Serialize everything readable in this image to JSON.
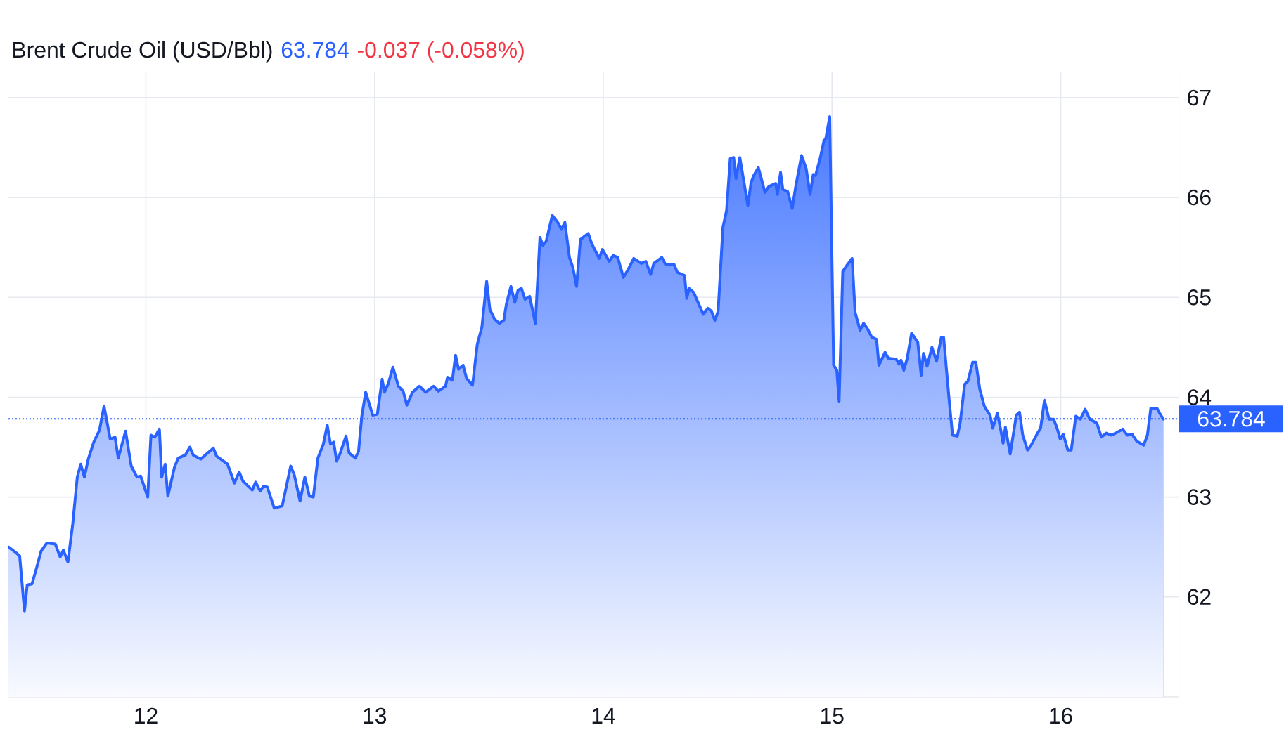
{
  "chart_data": {
    "type": "area",
    "title": "Brent Crude Oil (USD/Bbl)",
    "annotations": [
      "63.784",
      "-0.037 (-0.058%)"
    ],
    "color": "#2962ff",
    "x": [
      11.399,
      11.434,
      11.448,
      11.469,
      11.481,
      11.502,
      11.522,
      11.542,
      11.567,
      11.604,
      11.625,
      11.639,
      11.659,
      11.68,
      11.7,
      11.715,
      11.731,
      11.748,
      11.772,
      11.797,
      11.817,
      11.844,
      11.865,
      11.879,
      11.911,
      11.936,
      11.961,
      11.977,
      12.008,
      12.022,
      12.039,
      12.059,
      12.069,
      12.084,
      12.096,
      12.125,
      12.141,
      12.172,
      12.192,
      12.207,
      12.24,
      12.264,
      12.295,
      12.309,
      12.357,
      12.387,
      12.408,
      12.424,
      12.465,
      12.48,
      12.5,
      12.514,
      12.531,
      12.561,
      12.596,
      12.633,
      12.649,
      12.674,
      12.695,
      12.715,
      12.732,
      12.752,
      12.776,
      12.793,
      12.807,
      12.821,
      12.834,
      12.848,
      12.875,
      12.889,
      12.916,
      12.93,
      12.944,
      12.961,
      12.992,
      13.012,
      13.033,
      13.043,
      13.059,
      13.08,
      13.104,
      13.125,
      13.141,
      13.166,
      13.196,
      13.223,
      13.258,
      13.279,
      13.31,
      13.319,
      13.34,
      13.354,
      13.367,
      13.387,
      13.402,
      13.428,
      13.449,
      13.469,
      13.49,
      13.504,
      13.525,
      13.545,
      13.565,
      13.576,
      13.596,
      13.613,
      13.627,
      13.642,
      13.658,
      13.678,
      13.703,
      13.723,
      13.736,
      13.75,
      13.777,
      13.801,
      13.817,
      13.832,
      13.852,
      13.867,
      13.883,
      13.9,
      13.934,
      13.949,
      13.982,
      13.996,
      14.026,
      14.043,
      14.063,
      14.088,
      14.109,
      14.133,
      14.166,
      14.186,
      14.207,
      14.221,
      14.256,
      14.272,
      14.309,
      14.324,
      14.355,
      14.365,
      14.375,
      14.395,
      14.437,
      14.457,
      14.473,
      14.488,
      14.502,
      14.523,
      14.539,
      14.555,
      14.57,
      14.58,
      14.597,
      14.632,
      14.646,
      14.658,
      14.678,
      14.707,
      14.724,
      14.754,
      14.761,
      14.775,
      14.785,
      14.806,
      14.826,
      14.842,
      14.867,
      14.887,
      14.904,
      14.918,
      14.928,
      14.949,
      14.965,
      14.973,
      14.99,
      15.007,
      15.021,
      15.031,
      15.047,
      15.068,
      15.088,
      15.101,
      15.123,
      15.138,
      15.154,
      15.174,
      15.195,
      15.205,
      15.232,
      15.246,
      15.281,
      15.293,
      15.302,
      15.314,
      15.328,
      15.348,
      15.375,
      15.39,
      15.4,
      15.416,
      15.437,
      15.457,
      15.478,
      15.488,
      15.513,
      15.527,
      15.548,
      15.56,
      15.58,
      15.594,
      15.615,
      15.629,
      15.646,
      15.666,
      15.691,
      15.703,
      15.723,
      15.738,
      15.748,
      15.758,
      15.779,
      15.806,
      15.82,
      15.834,
      15.855,
      15.871,
      15.896,
      15.912,
      15.929,
      15.949,
      15.969,
      15.984,
      15.998,
      16.011,
      16.031,
      16.046,
      16.066,
      16.086,
      16.107,
      16.127,
      16.158,
      16.178,
      16.199,
      16.22,
      16.24,
      16.271,
      16.291,
      16.312,
      16.332,
      16.363,
      16.379,
      16.394,
      16.421,
      16.435,
      16.449
    ],
    "values": [
      62.5,
      62.44,
      62.41,
      61.86,
      62.12,
      62.13,
      62.29,
      62.46,
      62.54,
      62.53,
      62.4,
      62.47,
      62.35,
      62.73,
      63.2,
      63.33,
      63.2,
      63.38,
      63.55,
      63.67,
      63.91,
      63.58,
      63.6,
      63.39,
      63.66,
      63.31,
      63.2,
      63.21,
      63.0,
      63.62,
      63.6,
      63.68,
      63.2,
      63.33,
      63.01,
      63.3,
      63.39,
      63.42,
      63.5,
      63.42,
      63.38,
      63.43,
      63.49,
      63.41,
      63.33,
      63.14,
      63.25,
      63.16,
      63.07,
      63.15,
      63.06,
      63.11,
      63.1,
      62.89,
      62.91,
      63.31,
      63.22,
      62.96,
      63.2,
      63.01,
      63.0,
      63.39,
      63.53,
      63.72,
      63.53,
      63.55,
      63.36,
      63.43,
      63.61,
      63.44,
      63.39,
      63.46,
      63.81,
      64.05,
      63.82,
      63.83,
      64.18,
      64.05,
      64.13,
      64.3,
      64.11,
      64.06,
      63.92,
      64.05,
      64.11,
      64.05,
      64.11,
      64.06,
      64.11,
      64.2,
      64.17,
      64.42,
      64.28,
      64.32,
      64.19,
      64.12,
      64.53,
      64.7,
      65.16,
      64.88,
      64.78,
      64.74,
      64.77,
      64.93,
      65.11,
      64.95,
      65.07,
      65.09,
      64.98,
      65.01,
      64.74,
      65.6,
      65.52,
      65.56,
      65.82,
      65.75,
      65.68,
      65.75,
      65.4,
      65.3,
      65.11,
      65.58,
      65.64,
      65.54,
      65.39,
      65.48,
      65.36,
      65.42,
      65.4,
      65.2,
      65.28,
      65.39,
      65.34,
      65.36,
      65.23,
      65.34,
      65.4,
      65.33,
      65.33,
      65.25,
      65.22,
      64.99,
      65.09,
      65.05,
      64.83,
      64.89,
      64.86,
      64.77,
      64.86,
      65.7,
      65.87,
      66.39,
      66.4,
      66.19,
      66.4,
      65.92,
      66.15,
      66.22,
      66.3,
      66.05,
      66.11,
      66.14,
      66.03,
      66.25,
      66.08,
      66.06,
      65.89,
      66.12,
      66.42,
      66.29,
      66.03,
      66.23,
      66.22,
      66.4,
      66.57,
      66.59,
      66.81,
      64.32,
      64.27,
      63.96,
      65.26,
      65.33,
      65.39,
      64.85,
      64.67,
      64.74,
      64.69,
      64.6,
      64.58,
      64.32,
      64.45,
      64.39,
      64.38,
      64.33,
      64.37,
      64.27,
      64.38,
      64.64,
      64.55,
      64.22,
      64.44,
      64.31,
      64.5,
      64.36,
      64.6,
      64.6,
      63.95,
      63.62,
      63.61,
      63.74,
      64.13,
      64.16,
      64.35,
      64.35,
      64.08,
      63.91,
      63.82,
      63.69,
      63.84,
      63.67,
      63.54,
      63.7,
      63.43,
      63.82,
      63.85,
      63.62,
      63.47,
      63.52,
      63.63,
      63.69,
      63.97,
      63.78,
      63.78,
      63.69,
      63.58,
      63.63,
      63.47,
      63.47,
      63.81,
      63.78,
      63.88,
      63.78,
      63.74,
      63.6,
      63.64,
      63.62,
      63.64,
      63.68,
      63.62,
      63.63,
      63.56,
      63.52,
      63.62,
      63.89,
      63.89,
      63.83,
      63.78
    ],
    "xlim": [
      11.399,
      16.517
    ],
    "ylim": [
      61,
      67.25
    ],
    "xticks": [
      12,
      13,
      14,
      15,
      16
    ],
    "yticks": [
      62,
      63,
      64,
      65,
      66,
      67
    ],
    "grid": true,
    "ref_lines": [
      {
        "axis": "y",
        "value": 63.784,
        "label": "63.784",
        "color": "#2962ff",
        "line_style": "dotted"
      }
    ]
  }
}
